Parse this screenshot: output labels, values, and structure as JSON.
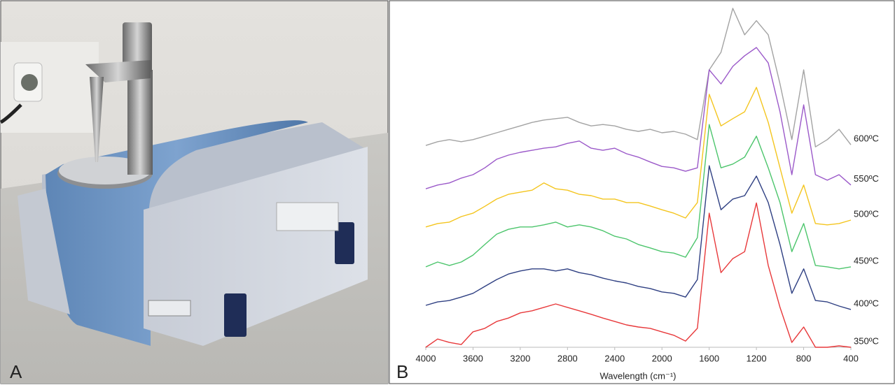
{
  "photo_label": "A",
  "chart_label": "B",
  "chart_data": {
    "type": "line",
    "xlabel": "Wavelength (cm⁻¹)",
    "xlim": [
      4000,
      400
    ],
    "xticks": [
      4000,
      3600,
      3200,
      2800,
      2400,
      2000,
      1600,
      1200,
      800,
      400
    ],
    "ylim": [
      0,
      100
    ],
    "x": [
      4000,
      3900,
      3800,
      3700,
      3600,
      3500,
      3400,
      3300,
      3200,
      3100,
      3000,
      2900,
      2800,
      2700,
      2600,
      2500,
      2400,
      2300,
      2200,
      2100,
      2000,
      1900,
      1800,
      1700,
      1600,
      1500,
      1400,
      1300,
      1200,
      1100,
      1000,
      900,
      800,
      700,
      600,
      500,
      400
    ],
    "series": [
      {
        "name": "600ºC",
        "color": "#a3a3a3",
        "values": [
          58.7,
          59.8,
          60.4,
          59.8,
          60.4,
          61.4,
          62.4,
          63.4,
          64.4,
          65.4,
          66.1,
          66.5,
          66.9,
          65.4,
          64.4,
          64.8,
          64.4,
          63.4,
          62.8,
          63.4,
          62.4,
          62.8,
          62,
          60.4,
          80.7,
          85.8,
          98.6,
          90.9,
          95,
          90.9,
          76.6,
          60.4,
          80.7,
          58.3,
          60.4,
          63.4,
          58.9
        ]
      },
      {
        "name": "550ºC",
        "color": "#9b59c9",
        "values": [
          46.1,
          47.2,
          47.8,
          49.2,
          50.2,
          52.2,
          54.7,
          55.9,
          56.7,
          57.3,
          57.9,
          58.3,
          59.3,
          60,
          57.9,
          57.3,
          57.9,
          56.3,
          55.3,
          53.9,
          52.6,
          52.2,
          51.2,
          52.2,
          80.7,
          76.6,
          81.7,
          84.8,
          87.2,
          82.7,
          68.5,
          50.2,
          70.5,
          50.2,
          48.6,
          50.2,
          47.2
        ]
      },
      {
        "name": "500ºC",
        "color": "#f4c51e",
        "values": [
          35,
          36,
          36.4,
          38,
          39,
          41,
          43.1,
          44.5,
          45.1,
          45.7,
          47.8,
          46.1,
          45.7,
          44.5,
          44.1,
          43.1,
          43.1,
          42.1,
          42.1,
          41.1,
          40,
          39,
          37.6,
          42.1,
          73.6,
          64.4,
          66.5,
          68.5,
          75.6,
          65.4,
          52.2,
          39,
          47.2,
          36,
          35.6,
          36,
          37
        ]
      },
      {
        "name": "450ºC",
        "color": "#4cc56c",
        "values": [
          23.4,
          24.8,
          23.8,
          24.8,
          26.8,
          29.9,
          32.9,
          34.3,
          35,
          35,
          35.6,
          36.4,
          35,
          35.6,
          35,
          33.9,
          32.3,
          31.5,
          29.9,
          28.9,
          27.8,
          27.4,
          26.2,
          31.9,
          64.8,
          52.2,
          53.3,
          55.3,
          61.4,
          52.2,
          42.1,
          27.8,
          36,
          23.8,
          23.4,
          22.8,
          23.4
        ]
      },
      {
        "name": "400ºC",
        "color": "#2e3f82",
        "values": [
          12.2,
          13.2,
          13.6,
          14.6,
          15.7,
          17.7,
          19.7,
          21.3,
          22.2,
          22.8,
          22.8,
          22.2,
          22.8,
          21.7,
          21.1,
          20.1,
          19.3,
          18.7,
          17.7,
          17.1,
          16.1,
          15.7,
          14.6,
          19.7,
          52.8,
          40,
          43.1,
          44.1,
          49.8,
          42.1,
          29.9,
          15.7,
          22.8,
          13.6,
          13.2,
          12,
          11
        ]
      },
      {
        "name": "350ºC",
        "color": "#e8393b",
        "values": [
          0,
          2.4,
          1.4,
          0.8,
          4.5,
          5.5,
          7.5,
          8.5,
          10,
          10.6,
          11.6,
          12.6,
          11.6,
          10.6,
          9.6,
          8.5,
          7.5,
          6.5,
          5.9,
          5.5,
          4.5,
          3.5,
          1.8,
          5.5,
          39,
          21.7,
          25.8,
          27.8,
          42,
          23.8,
          11.6,
          1.4,
          5.9,
          0,
          0,
          0.4,
          0
        ]
      }
    ]
  }
}
